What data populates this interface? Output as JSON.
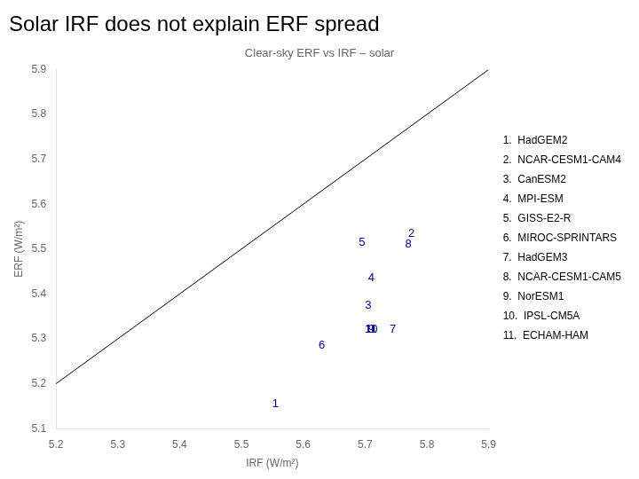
{
  "chart_data": {
    "type": "scatter",
    "title": "Solar IRF does not explain ERF spread",
    "subtitle": "Clear-sky ERF vs IRF – solar",
    "xlabel": "IRF (W/m²)",
    "ylabel": "ERF (W/m²)",
    "xlim": [
      5.2,
      5.9
    ],
    "ylim": [
      5.1,
      5.9
    ],
    "xticks": [
      5.2,
      5.3,
      5.4,
      5.5,
      5.6,
      5.7,
      5.8,
      5.9
    ],
    "yticks": [
      5.1,
      5.2,
      5.3,
      5.4,
      5.5,
      5.6,
      5.7,
      5.8,
      5.9
    ],
    "grid": false,
    "legend": "right",
    "series": [
      {
        "type": "line",
        "x": [
          5.2,
          5.9
        ],
        "values": [
          5.2,
          5.9
        ],
        "color": "#000000"
      },
      {
        "name": "1.  HadGEM2",
        "label": "1",
        "marker": "text",
        "color": "#00008B",
        "x": [
          5.555
        ],
        "values": [
          5.155
        ]
      },
      {
        "name": "2.  NCAR-CESM1-CAM4",
        "label": "2",
        "marker": "text",
        "color": "#00008B",
        "x": [
          5.775
        ],
        "values": [
          5.535
        ]
      },
      {
        "name": "3.  CanESM2",
        "label": "3",
        "marker": "text",
        "color": "#00008B",
        "x": [
          5.705
        ],
        "values": [
          5.375
        ]
      },
      {
        "name": "4.  MPI-ESM",
        "label": "4",
        "marker": "text",
        "color": "#00008B",
        "x": [
          5.71
        ],
        "values": [
          5.435
        ]
      },
      {
        "name": "5.  GISS-E2-R",
        "label": "5",
        "marker": "text",
        "color": "#00008B",
        "x": [
          5.695
        ],
        "values": [
          5.515
        ]
      },
      {
        "name": "6.  MIROC-SPRINTARS",
        "label": "6",
        "marker": "text",
        "color": "#00008B",
        "x": [
          5.63
        ],
        "values": [
          5.285
        ]
      },
      {
        "name": "7.  HadGEM3",
        "label": "7",
        "marker": "text",
        "color": "#00008B",
        "x": [
          5.745
        ],
        "values": [
          5.32
        ]
      },
      {
        "name": "8.  NCAR-CESM1-CAM5",
        "label": "8",
        "marker": "text",
        "color": "#00008B",
        "x": [
          5.77
        ],
        "values": [
          5.51
        ]
      },
      {
        "name": "9.  NorESM1",
        "label": "9",
        "marker": "text",
        "color": "#00008B",
        "x": [
          5.71
        ],
        "values": [
          5.32
        ]
      },
      {
        "name": "10.  IPSL-CM5A",
        "label": "10",
        "marker": "text",
        "color": "#00008B",
        "x": [
          5.71
        ],
        "values": [
          5.32
        ]
      },
      {
        "name": "11.  ECHAM-HAM",
        "label": "11",
        "marker": "text",
        "color": "#00008B",
        "x": [
          5.71
        ],
        "values": [
          5.32
        ]
      }
    ]
  }
}
